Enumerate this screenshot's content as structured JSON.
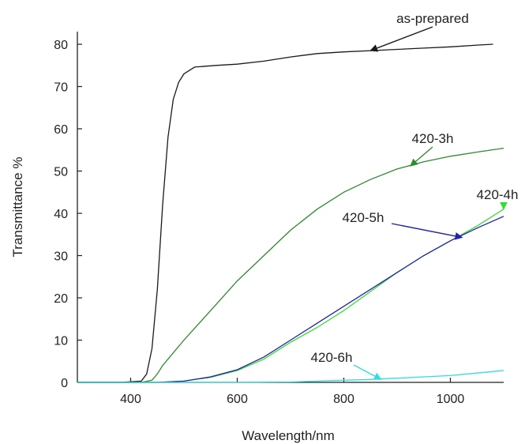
{
  "chart_data": {
    "type": "line",
    "title": "",
    "xlabel": "Wavelength/nm",
    "ylabel": "Transmittance %",
    "xlim": [
      300,
      1100
    ],
    "ylim": [
      0,
      83
    ],
    "xticks": [
      400,
      600,
      800,
      1000
    ],
    "yticks": [
      0,
      10,
      20,
      30,
      40,
      50,
      60,
      70,
      80
    ],
    "grid": false,
    "legend": "none",
    "series": [
      {
        "name": "as-prepared",
        "color": "#1a1a1a",
        "x": [
          300,
          380,
          420,
          430,
          440,
          450,
          460,
          470,
          480,
          490,
          500,
          520,
          560,
          600,
          650,
          700,
          750,
          800,
          850,
          900,
          950,
          1000,
          1050,
          1080
        ],
        "y": [
          0,
          0,
          0.3,
          2,
          8,
          22,
          42,
          58,
          67,
          71,
          73,
          74.6,
          75,
          75.3,
          76,
          77,
          77.8,
          78.2,
          78.5,
          78.8,
          79.1,
          79.4,
          79.8,
          80
        ]
      },
      {
        "name": "420-3h",
        "color": "#2e8b2e",
        "x": [
          300,
          420,
          440,
          450,
          460,
          480,
          500,
          550,
          600,
          650,
          700,
          750,
          800,
          850,
          900,
          950,
          1000,
          1050,
          1100
        ],
        "y": [
          0,
          0,
          0.5,
          2,
          4,
          7,
          10,
          17,
          24,
          30,
          36,
          41,
          45,
          48,
          50.5,
          52.2,
          53.5,
          54.5,
          55.4
        ]
      },
      {
        "name": "420-4h",
        "color": "#33dd33",
        "x": [
          300,
          450,
          500,
          550,
          600,
          650,
          700,
          750,
          800,
          850,
          900,
          950,
          1000,
          1050,
          1100
        ],
        "y": [
          0,
          0,
          0.3,
          1.2,
          2.8,
          5.5,
          9.5,
          13,
          17,
          21.5,
          26,
          30,
          33.5,
          37,
          41
        ]
      },
      {
        "name": "420-5h",
        "color": "#2222aa",
        "x": [
          300,
          450,
          500,
          550,
          600,
          650,
          700,
          750,
          800,
          850,
          900,
          950,
          1000,
          1050,
          1100
        ],
        "y": [
          0,
          0,
          0.3,
          1.3,
          3,
          6,
          10,
          14,
          18,
          22,
          26,
          30,
          33.5,
          36.5,
          39.3
        ]
      },
      {
        "name": "420-6h",
        "color": "#33dddd",
        "x": [
          300,
          500,
          600,
          700,
          750,
          800,
          850,
          900,
          950,
          1000,
          1050,
          1100
        ],
        "y": [
          0,
          0,
          0,
          0.1,
          0.3,
          0.5,
          0.7,
          1.0,
          1.3,
          1.6,
          2.2,
          2.8
        ]
      }
    ],
    "annotations": [
      {
        "text": "as-prepared",
        "series": 0,
        "arrow_to": [
          850,
          78.5
        ]
      },
      {
        "text": "420-3h",
        "series": 1,
        "arrow_to": [
          925,
          51.2
        ]
      },
      {
        "text": "420-4h",
        "series": 2,
        "arrow_to": [
          1100,
          41
        ]
      },
      {
        "text": "420-5h",
        "series": 3,
        "arrow_to": [
          1022,
          34.3
        ]
      },
      {
        "text": "420-6h",
        "series": 4,
        "arrow_to": [
          870,
          0.7
        ]
      }
    ]
  }
}
